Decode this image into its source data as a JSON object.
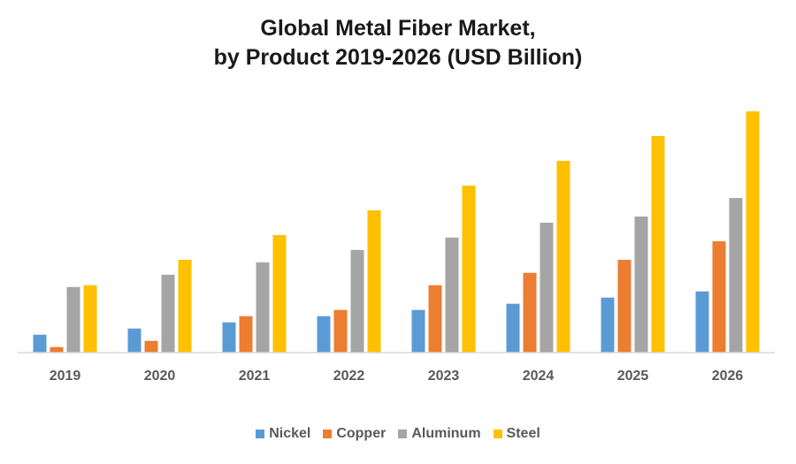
{
  "chart_data": {
    "type": "bar",
    "title": "Global Metal Fiber Market,",
    "subtitle": "by Product 2019-2026 (USD Billion)",
    "title_lines": [
      "Global Metal Fiber Market,",
      "by Product 2019-2026 (USD Billion)"
    ],
    "xlabel": "",
    "ylabel": "",
    "categories": [
      "2019",
      "2020",
      "2021",
      "2022",
      "2023",
      "2024",
      "2025",
      "2026"
    ],
    "series": [
      {
        "name": "Nickel",
        "color": "#5B9BD5",
        "values": [
          2.9,
          3.9,
          4.9,
          5.9,
          6.9,
          7.9,
          8.9,
          9.9
        ]
      },
      {
        "name": "Copper",
        "color": "#ED7D31",
        "values": [
          0.9,
          1.9,
          5.9,
          6.9,
          10.9,
          12.9,
          15.0,
          18.0
        ]
      },
      {
        "name": "Aluminum",
        "color": "#A5A5A5",
        "values": [
          10.6,
          12.6,
          14.6,
          16.6,
          18.6,
          21.0,
          22.0,
          25.0
        ]
      },
      {
        "name": "Steel",
        "color": "#FFC000",
        "values": [
          10.9,
          15.0,
          19.0,
          23.0,
          27.0,
          31.0,
          35.0,
          39.0
        ]
      }
    ],
    "ylim": [
      0,
      40
    ],
    "y_axis_visible": false,
    "grid": false,
    "legend_position": "bottom",
    "values_note": "estimated relative values; no y-axis scale shown"
  }
}
